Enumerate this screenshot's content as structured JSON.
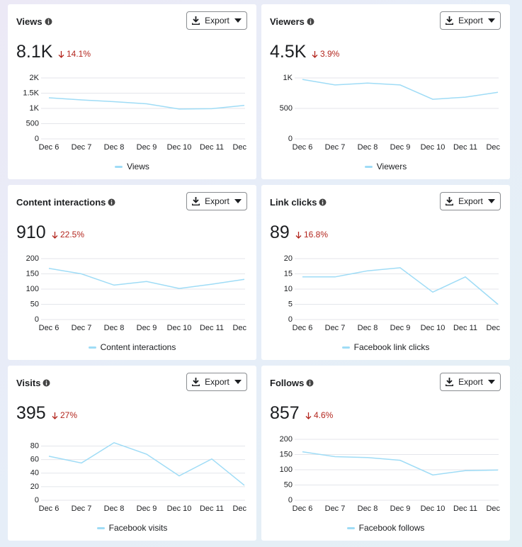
{
  "chart_data": [
    {
      "type": "line",
      "title": "Views",
      "metric": "8.1K",
      "change": "14.1%",
      "button": "Export",
      "categories": [
        "Dec 6",
        "Dec 7",
        "Dec 8",
        "Dec 9",
        "Dec 10",
        "Dec 11",
        "Dec"
      ],
      "series": [
        {
          "name": "Views",
          "color": "#9fdcf6",
          "values": [
            1350,
            1280,
            1220,
            1150,
            980,
            990,
            1100
          ]
        }
      ],
      "ylim": [
        0,
        2000
      ],
      "yticks": [
        0,
        500,
        {
          "value": 1000,
          "label": "1K"
        },
        {
          "value": 1500,
          "label": "1.5K"
        },
        {
          "value": 2000,
          "label": "2K"
        }
      ],
      "grid": true
    },
    {
      "type": "line",
      "title": "Viewers",
      "metric": "4.5K",
      "change": "3.9%",
      "button": "Export",
      "categories": [
        "Dec 6",
        "Dec 7",
        "Dec 8",
        "Dec 9",
        "Dec 10",
        "Dec 11",
        "Dec"
      ],
      "series": [
        {
          "name": "Viewers",
          "color": "#9fdcf6",
          "values": [
            975,
            885,
            915,
            885,
            650,
            685,
            765
          ]
        }
      ],
      "ylim": [
        0,
        1000
      ],
      "yticks": [
        0,
        500,
        {
          "value": 1000,
          "label": "1K"
        }
      ],
      "grid": true
    },
    {
      "type": "line",
      "title": "Content interactions",
      "metric": "910",
      "change": "22.5%",
      "button": "Export",
      "categories": [
        "Dec 6",
        "Dec 7",
        "Dec 8",
        "Dec 9",
        "Dec 10",
        "Dec 11",
        "Dec"
      ],
      "series": [
        {
          "name": "Content interactions",
          "color": "#9fdcf6",
          "values": [
            168,
            150,
            113,
            125,
            102,
            116,
            132
          ]
        }
      ],
      "ylim": [
        0,
        200
      ],
      "yticks": [
        0,
        50,
        100,
        150,
        200
      ],
      "grid": true
    },
    {
      "type": "line",
      "title": "Link clicks",
      "metric": "89",
      "change": "16.8%",
      "button": "Export",
      "categories": [
        "Dec 6",
        "Dec 7",
        "Dec 8",
        "Dec 9",
        "Dec 10",
        "Dec 11",
        "Dec"
      ],
      "series": [
        {
          "name": "Facebook link clicks",
          "color": "#9fdcf6",
          "values": [
            14,
            14,
            16,
            17,
            9,
            14,
            5
          ]
        }
      ],
      "ylim": [
        0,
        20
      ],
      "yticks": [
        0,
        5,
        10,
        15,
        20
      ],
      "grid": true
    },
    {
      "type": "line",
      "title": "Visits",
      "metric": "395",
      "change": "27%",
      "button": "Export",
      "categories": [
        "Dec 6",
        "Dec 7",
        "Dec 8",
        "Dec 9",
        "Dec 10",
        "Dec 11",
        "Dec"
      ],
      "series": [
        {
          "name": "Facebook visits",
          "color": "#9fdcf6",
          "values": [
            65,
            55,
            85,
            68,
            36,
            61,
            22
          ]
        }
      ],
      "ylim": [
        0,
        90
      ],
      "yticks": [
        0,
        20,
        40,
        60,
        80
      ],
      "grid": true
    },
    {
      "type": "line",
      "title": "Follows",
      "metric": "857",
      "change": "4.6%",
      "button": "Export",
      "categories": [
        "Dec 6",
        "Dec 7",
        "Dec 8",
        "Dec 9",
        "Dec 10",
        "Dec 11",
        "Dec"
      ],
      "series": [
        {
          "name": "Facebook follows",
          "color": "#9fdcf6",
          "values": [
            159,
            143,
            140,
            131,
            83,
            97,
            99
          ]
        }
      ],
      "ylim": [
        0,
        200
      ],
      "yticks": [
        0,
        50,
        100,
        150,
        200
      ],
      "grid": true
    }
  ]
}
